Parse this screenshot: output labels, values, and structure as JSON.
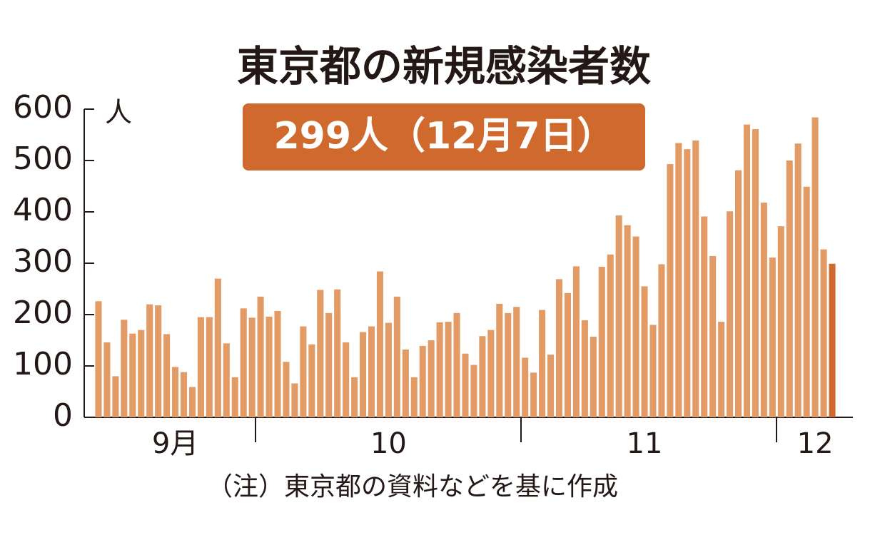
{
  "chart_data": {
    "type": "bar",
    "title": "東京都の新規感染者数",
    "annotation": "299人（12月7日）",
    "y_unit": "人",
    "note": "（注）東京都の資料などを基に作成",
    "categories": [
      null,
      null,
      null,
      null,
      null,
      null,
      null,
      null,
      null,
      "9月",
      null,
      null,
      null,
      null,
      null,
      null,
      null,
      null,
      null,
      null,
      null,
      null,
      null,
      null,
      null,
      null,
      null,
      null,
      null,
      null,
      null,
      null,
      null,
      null,
      "10",
      null,
      null,
      null,
      null,
      null,
      null,
      null,
      null,
      null,
      null,
      null,
      null,
      null,
      null,
      null,
      null,
      null,
      null,
      null,
      null,
      null,
      null,
      null,
      null,
      null,
      null,
      null,
      null,
      null,
      "11",
      null,
      null,
      null,
      null,
      null,
      null,
      null,
      null,
      null,
      null,
      null,
      null,
      null,
      null,
      null,
      null,
      null,
      null,
      null,
      "12",
      null,
      null
    ],
    "values": [
      226,
      146,
      80,
      190,
      163,
      170,
      220,
      218,
      162,
      98,
      88,
      59,
      195,
      195,
      270,
      144,
      78,
      212,
      194,
      235,
      196,
      207,
      108,
      66,
      177,
      142,
      248,
      203,
      249,
      146,
      78,
      166,
      177,
      284,
      184,
      235,
      132,
      78,
      139,
      150,
      185,
      186,
      203,
      124,
      102,
      158,
      170,
      221,
      203,
      215,
      116,
      87,
      209,
      122,
      269,
      242,
      294,
      189,
      157,
      293,
      317,
      393,
      374,
      352,
      255,
      180,
      298,
      493,
      534,
      522,
      539,
      391,
      314,
      186,
      401,
      481,
      570,
      561,
      418,
      311,
      372,
      500,
      533,
      449,
      584,
      327,
      299
    ],
    "color": "#e39b66",
    "last_color": "#d0692d",
    "ylim": [
      0,
      600
    ],
    "yticks": [
      0,
      100,
      200,
      300,
      400,
      500,
      600
    ]
  }
}
